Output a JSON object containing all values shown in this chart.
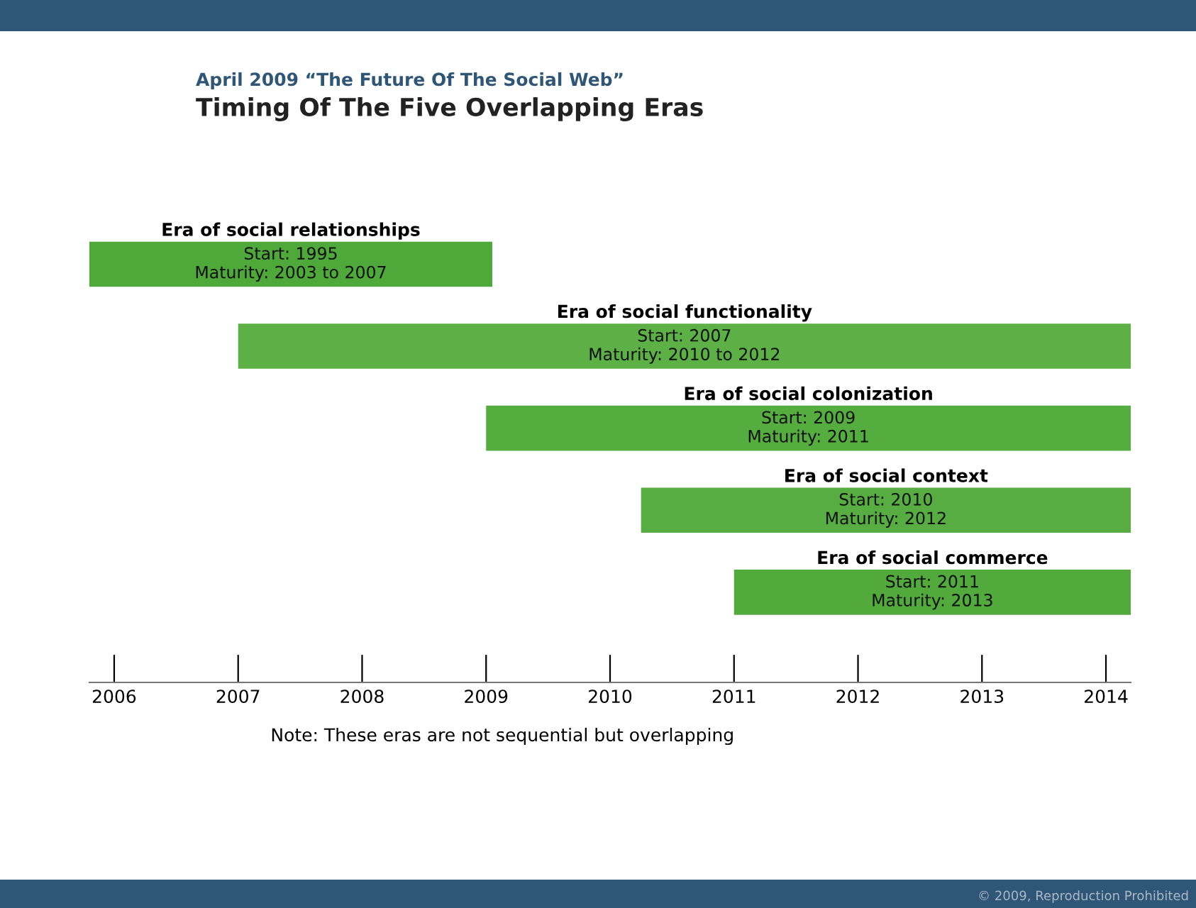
{
  "chart_data": {
    "type": "bar",
    "orientation": "horizontal",
    "title": "Timing Of The Five Overlapping Eras",
    "subtitle": "April 2009 “The Future Of The Social Web”",
    "categories": [
      "Era of social relationships",
      "Era of social functionality",
      "Era of social colonization",
      "Era of social context",
      "Era of social commerce"
    ],
    "base": [
      2005.8,
      2007,
      2009,
      2010.25,
      2011
    ],
    "values": [
      3.25,
      7.2,
      5.2,
      3.95,
      3.2
    ],
    "value_labels": [
      "Start: 1995\nMaturity: 2003 to 2007",
      "Start: 2007\nMaturity: 2010 to 2012",
      "Start: 2009\nMaturity: 2011",
      "Start: 2010\nMaturity: 2012",
      "Start: 2011\nMaturity: 2013"
    ],
    "colors": [
      "#4fa83a",
      "#5cb045",
      "#55ac3f",
      "#58ad42",
      "#52aa3d"
    ],
    "xlim": [
      2005.8,
      2014.2
    ],
    "xticks": [
      2006,
      2007,
      2008,
      2009,
      2010,
      2011,
      2012,
      2013,
      2014
    ],
    "tick_labels": "x",
    "grid": false,
    "legend": false,
    "annotations": [
      "Note: These eras are not sequential but overlapping",
      "© 2009, Reproduction Prohibited"
    ]
  }
}
